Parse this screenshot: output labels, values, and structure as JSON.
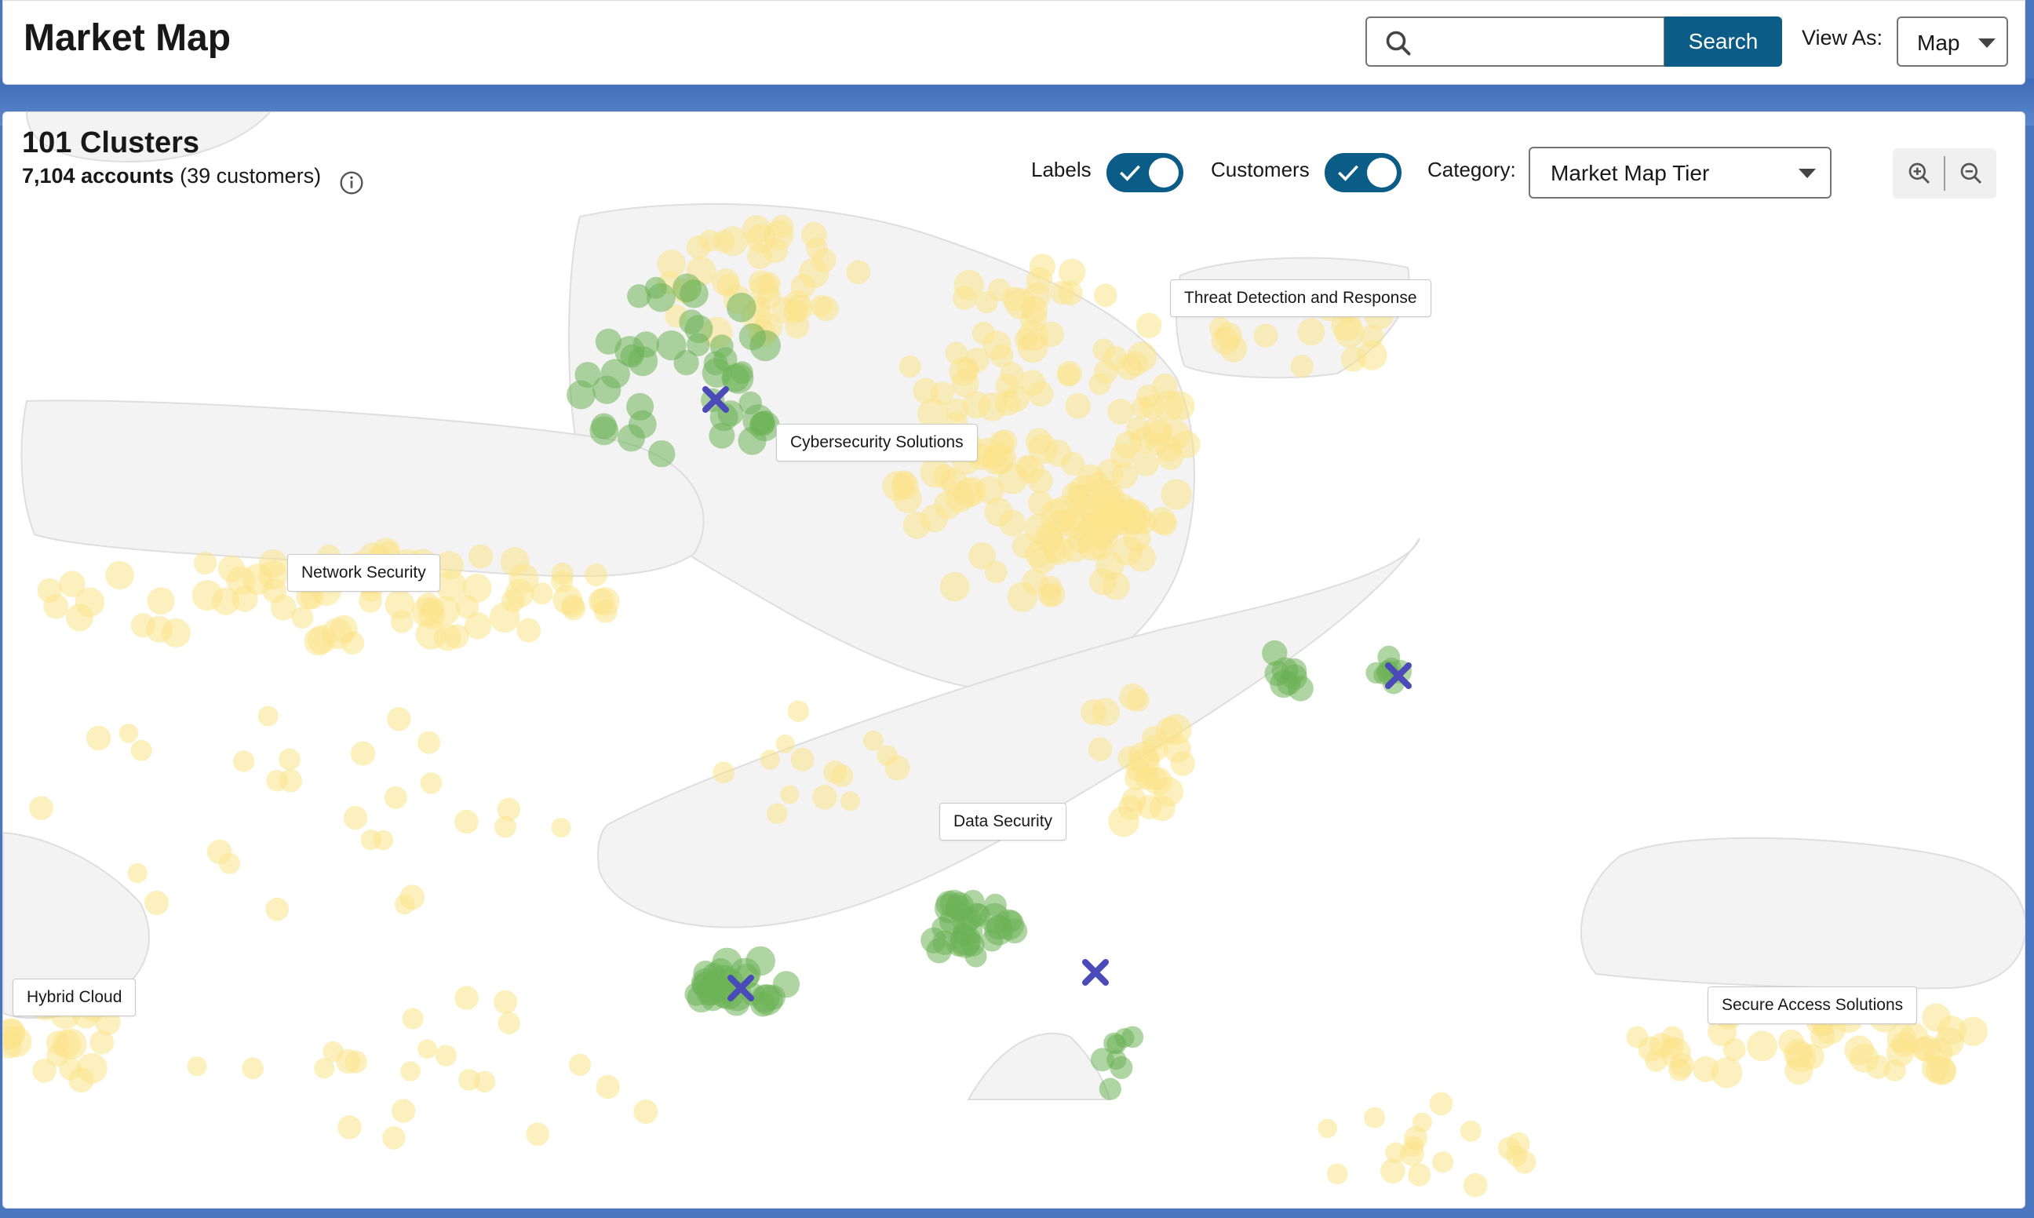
{
  "header": {
    "title": "Market Map",
    "search": {
      "placeholder": "",
      "button_label": "Search"
    },
    "view_as": {
      "label": "View As:",
      "value": "Map"
    }
  },
  "panel": {
    "clusters_title": "101 Clusters",
    "accounts_count": "7,104 accounts",
    "customers_count": "(39 customers)",
    "toggles": {
      "labels": {
        "label": "Labels",
        "on": true
      },
      "customers": {
        "label": "Customers",
        "on": true
      }
    },
    "category": {
      "label": "Category:",
      "value": "Market Map Tier"
    }
  },
  "map": {
    "cluster_labels": [
      "Threat Detection and Response",
      "Cybersecurity Solutions",
      "Network Security",
      "Data Security",
      "Hybrid Cloud",
      "Secure Access Solutions"
    ]
  },
  "colors": {
    "accent": "#0b5c86",
    "account_dot": "#fce38a",
    "customer_dot": "#6bb255",
    "marker": "#4a4ab8",
    "cluster_fill": "#f3f3f3",
    "background_band": "#4a76bf"
  }
}
